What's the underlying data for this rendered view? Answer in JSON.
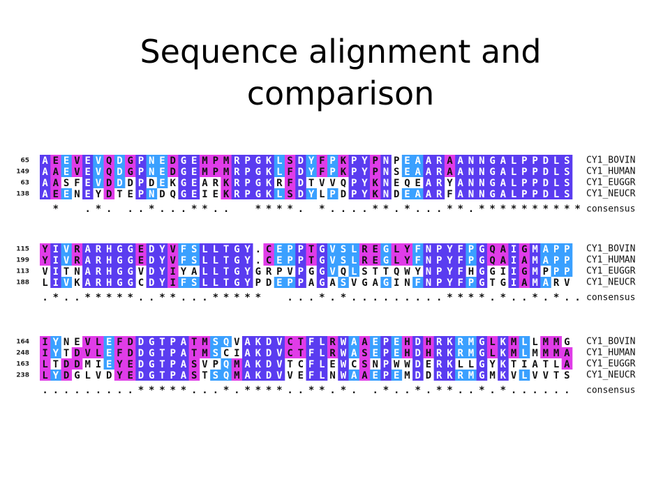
{
  "title_lines": [
    "Sequence alignment and",
    "comparison"
  ],
  "blocks": [
    {
      "rows": [
        {
          "start": "65",
          "sequence": "AEEVEVQDGPNEDGEMPMRPGKLSDYFPKPYPNPEAARAANNGALPPDLS",
          "name": "CY1_BOVIN"
        },
        {
          "start": "149",
          "sequence": "AAEVEVQDGPNEDGEMPMRPGKLFDYFPKPYPNSEAARAANNGALPPDLS",
          "name": "CY1_HUMAN"
        },
        {
          "start": "63",
          "sequence": "AASFEVDDDPDEKGEARKRPGKRFDTVVQPYKNEQEARYANNGALPPDLS",
          "name": "CY1_EUGGR"
        },
        {
          "start": "138",
          "sequence": "AEENEYDTEPNDQGEIEKRPGKLSDYLPDPYKNDEAARFANNGALPPDLS",
          "name": "CY1_NEUCR"
        }
      ],
      "consensus": {
        "sequence": " *  .*. ..*...**..  ****. *....**.*...**.**********",
        "label": "consensus"
      }
    },
    {
      "rows": [
        {
          "start": "115",
          "sequence": "YIVRARHGGEDYVFSLLTGY.CEPPTGVSLREGLYFNPYFPGQAIGMAPP",
          "name": "CY1_BOVIN"
        },
        {
          "start": "199",
          "sequence": "YIVRARHGGEDYVFSLLTGY.CEPPTGVSLREGLYFNPYFPGQAIAMAPP",
          "name": "CY1_HUMAN"
        },
        {
          "start": "113",
          "sequence": "VITNARHGGVDYIYALLTGYGRPVPGGVQLSTTQWYNPYFHGGIIGMPPP",
          "name": "CY1_EUGGR"
        },
        {
          "start": "188",
          "sequence": "LIVKARHGGCDYIFSLLTGYPDEPPAGASVGAGINFNPYFPGTGIAMARV",
          "name": "CY1_NEUCR"
        }
      ],
      "consensus": {
        "sequence": ".*..*****..**...*****  ...*.*.........****.*..*.*..",
        "label": "consensus"
      }
    },
    {
      "rows": [
        {
          "start": "164",
          "sequence": "IYNEVLEFDDGTPATMSQVAKDVCTFLRWAAEPEHDHRKRMGLKMLLMMG",
          "name": "CY1_BOVIN"
        },
        {
          "start": "248",
          "sequence": "IYTDVLEFDDGTPATMSCIAKDVCTFLRWASEPEHDHRKRMGLKMLMMMA",
          "name": "CY1_HUMAN"
        },
        {
          "start": "163",
          "sequence": "LTDDMIEYEDGTPASVPQMAKDVTCFLEWCSNPWWDERKLLGYKTIATLA",
          "name": "CY1_EUGGR"
        },
        {
          "start": "238",
          "sequence": "LYDGLVDYEDGTPASTSQMAKDVVEFLNWAAEPEMDDRKRMGMKVLVVTS",
          "name": "CY1_NEUCR"
        }
      ],
      "consensus": {
        "sequence": ".........*****...*.****..**.*. .*..*.**..*.*......",
        "label": "consensus"
      }
    }
  ]
}
